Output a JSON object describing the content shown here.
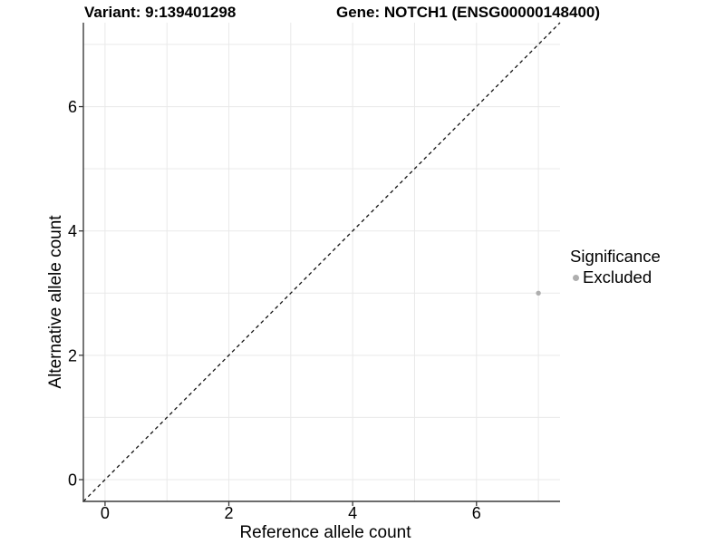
{
  "header": {
    "variant_title": "Variant: 9:139401298",
    "gene_title": "Gene: NOTCH1 (ENSG00000148400)"
  },
  "chart_data": {
    "type": "scatter",
    "xlabel": "Reference allele count",
    "ylabel": "Alternative allele count",
    "xlim": [
      -0.35,
      7.35
    ],
    "ylim": [
      -0.35,
      7.35
    ],
    "x_ticks": [
      0,
      2,
      4,
      6
    ],
    "y_ticks": [
      0,
      2,
      4,
      6
    ],
    "grid": true,
    "grid_interval": 1,
    "grid_range": [
      0,
      7
    ],
    "identity_line": {
      "style": "dashed",
      "from": [
        -0.35,
        -0.35
      ],
      "to": [
        7.35,
        7.35
      ]
    },
    "points": [
      {
        "x": 7,
        "y": 3,
        "series": "Excluded"
      }
    ],
    "legend": {
      "title": "Significance",
      "position": "right",
      "items": [
        {
          "label": "Excluded",
          "color": "#aeaeae",
          "marker": "circle"
        }
      ]
    }
  },
  "colors": {
    "background": "#ffffff",
    "gridline": "#e9e9e9",
    "axis_line": "#3c3c3c",
    "tick_label": "#000000",
    "identity_line": "#111111",
    "point": "#aeaeae"
  }
}
